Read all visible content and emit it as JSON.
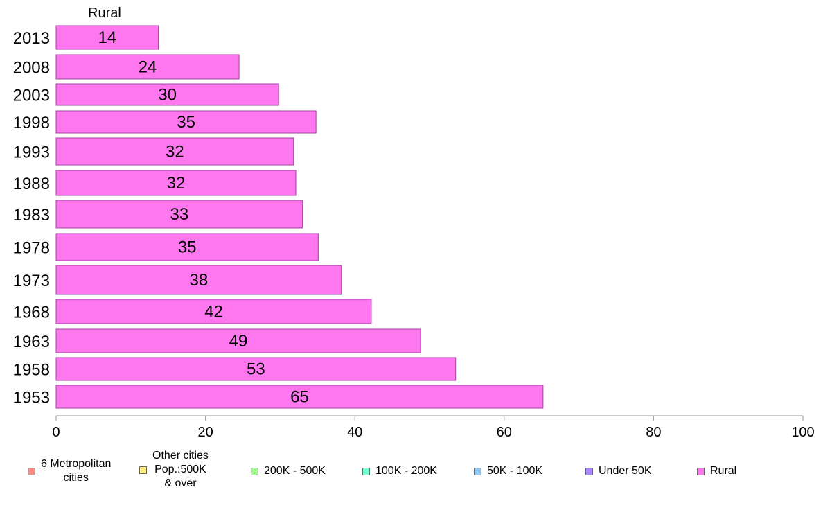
{
  "chart_data": {
    "type": "bar",
    "orientation": "horizontal",
    "panel_title": "Rural",
    "categories": [
      "2013",
      "2008",
      "2003",
      "1998",
      "1993",
      "1988",
      "1983",
      "1978",
      "1973",
      "1968",
      "1963",
      "1958",
      "1953"
    ],
    "series": [
      {
        "name": "Rural",
        "color": "#ff77ee",
        "values": [
          13.7,
          24.5,
          29.8,
          34.8,
          31.8,
          32.1,
          33.0,
          35.1,
          38.2,
          42.2,
          48.8,
          53.5,
          65.2
        ],
        "labels": [
          "14",
          "24",
          "30",
          "35",
          "32",
          "32",
          "33",
          "35",
          "38",
          "42",
          "49",
          "53",
          "65"
        ]
      }
    ],
    "xlim": [
      0,
      100
    ],
    "xticks": [
      "0",
      "20",
      "40",
      "60",
      "80",
      "100"
    ],
    "grid": false,
    "legend_position": "bottom",
    "legend": [
      {
        "label": "6 Metropolitan\n cities",
        "color": "#ff8a80"
      },
      {
        "label": "Other cities\nPop.:500K\n & over",
        "color": "#ffee88"
      },
      {
        "label": "200K - 500K",
        "color": "#99ff88"
      },
      {
        "label": "100K - 200K",
        "color": "#77ffcc"
      },
      {
        "label": "50K - 100K",
        "color": "#88ccff"
      },
      {
        "label": "Under 50K",
        "color": "#aa88ff"
      },
      {
        "label": "Rural",
        "color": "#ff77ee"
      }
    ]
  }
}
